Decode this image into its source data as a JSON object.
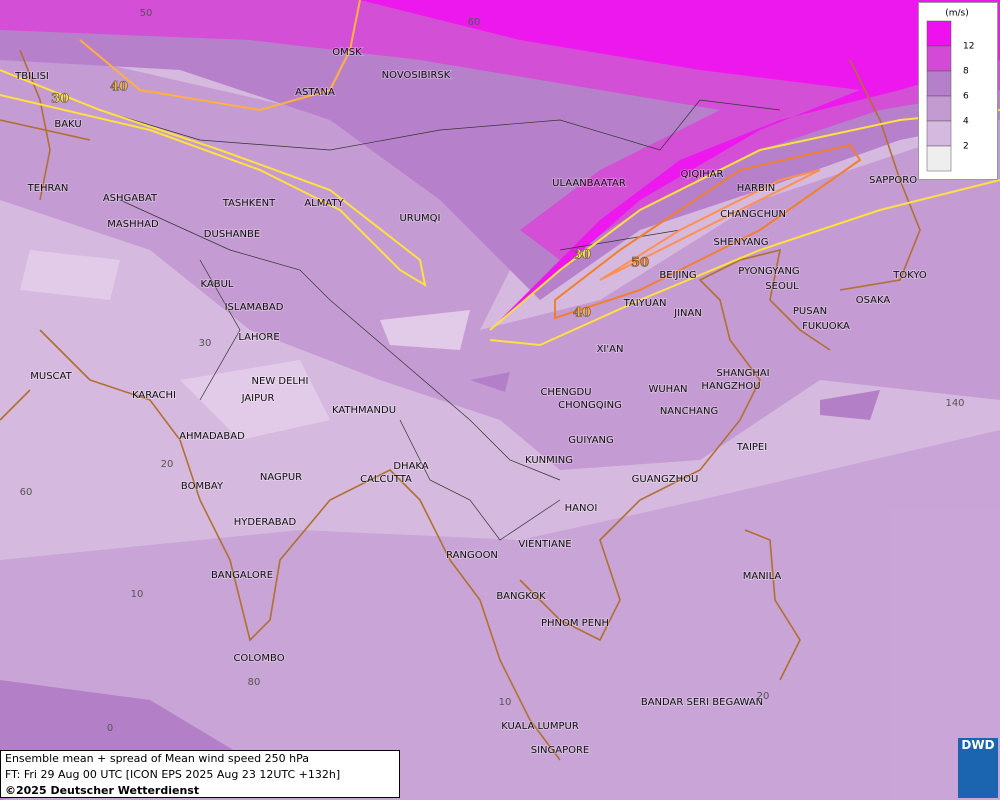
{
  "map": {
    "cities": [
      "OMSK",
      "NOVOSIBIRSK",
      "ASTANA",
      "TBILISI",
      "BAKU",
      "TEHRAN",
      "ASHGABAT",
      "MASHHAD",
      "TASHKENT",
      "ALMATY",
      "DUSHANBE",
      "URUMQI",
      "ULAANBAATAR",
      "QIQIHAR",
      "HARBIN",
      "CHANGCHUN",
      "SHENYANG",
      "BEIJING",
      "PYONGYANG",
      "SEOUL",
      "TAIYUAN",
      "JINAN",
      "PUSAN",
      "FUKUOKA",
      "TOKYO",
      "OSAKA",
      "SAPPORO",
      "KABUL",
      "ISLAMABAD",
      "LAHORE",
      "XI'AN",
      "NEW DELHI",
      "JAIPUR",
      "MUSCAT",
      "KARACHI",
      "CHENGDU",
      "CHONGQING",
      "WUHAN",
      "SHANGHAI",
      "HANGZHOU",
      "NANCHANG",
      "KATHMANDU",
      "AHMADABAD",
      "GUIYANG",
      "TAIPEI",
      "KUNMING",
      "DHAKA",
      "NAGPUR",
      "CALCUTTA",
      "GUANGZHOU",
      "BOMBAY",
      "HYDERABAD",
      "HANOI",
      "VIENTIANE",
      "RANGOON",
      "MANILA",
      "BANGALORE",
      "BANGKOK",
      "PHNOM PENH",
      "COLOMBO",
      "BANDAR SERI BEGAWAN",
      "KUALA LUMPUR",
      "SINGAPORE"
    ],
    "contour_labels": [
      30,
      40,
      30,
      50,
      40
    ],
    "grid_labels": [
      50,
      60,
      30,
      20,
      60,
      10,
      80,
      0,
      140,
      20,
      10
    ]
  },
  "legend": {
    "unit": "(m/s)",
    "ticks": [
      12,
      8,
      6,
      4,
      2
    ]
  },
  "footer": {
    "lines": [
      "Ensemble mean + spread of Mean wind speed 250 hPa",
      "FT: Fri 29 Aug 00 UTC [ICON EPS 2025 Aug 23 12UTC +132h]",
      "©2025 Deutscher Wetterdienst"
    ]
  },
  "logo": "DWD"
}
